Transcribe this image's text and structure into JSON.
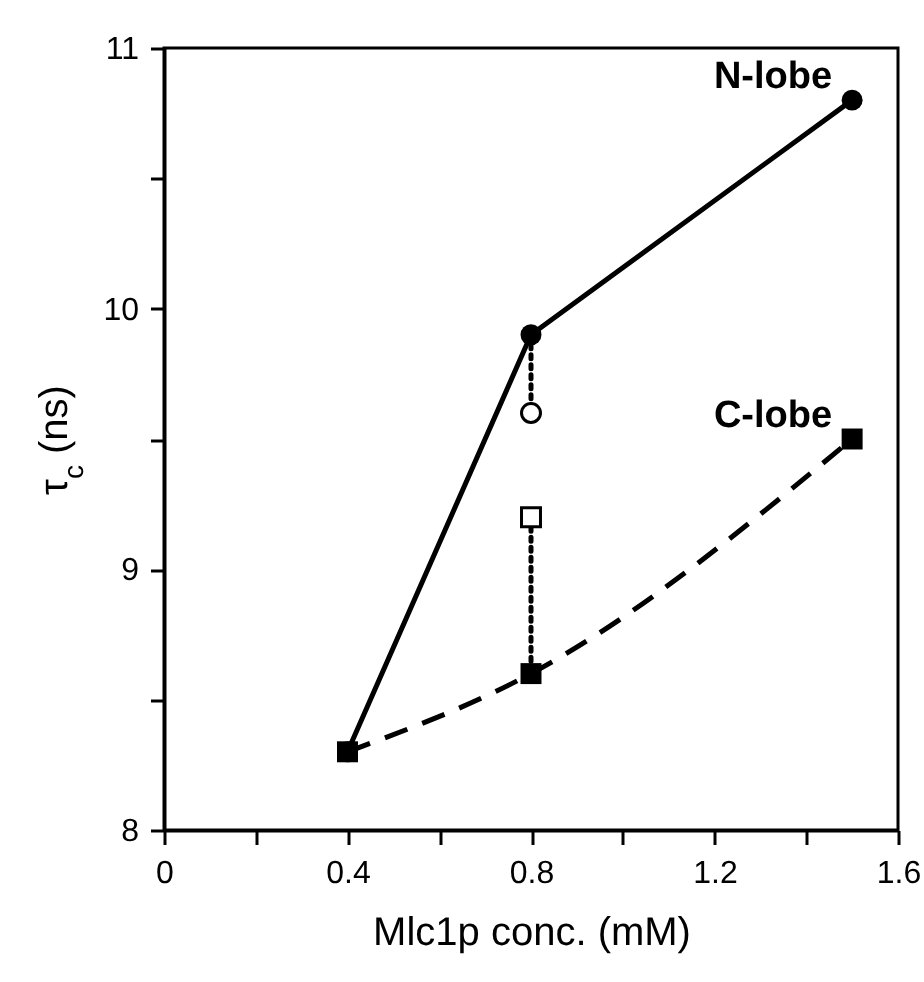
{
  "chart_data": {
    "type": "line",
    "xlabel": "Mlc1p conc. (mM)",
    "ylabel": "τ$_{c}$ (ns)",
    "xlim": [
      0,
      1.6
    ],
    "ylim": [
      8,
      11
    ],
    "xticks": [
      0,
      {
        "value": 0.2,
        "label": null
      },
      0.4,
      {
        "value": 0.6,
        "label": null
      },
      0.8,
      {
        "value": 1.0,
        "label": null
      },
      1.2,
      {
        "value": 1.4,
        "label": null
      },
      1.6
    ],
    "yticks": [
      8,
      {
        "value": 8.5,
        "label": null
      },
      9,
      {
        "value": 9.5,
        "label": null
      },
      10,
      {
        "value": 10.5,
        "label": null
      },
      11
    ],
    "grid": false,
    "series": [
      {
        "name": "N-lobe",
        "color": "#000000",
        "marker": "circle",
        "line_style": "solid",
        "x": [
          0.4,
          0.8,
          1.5
        ],
        "values": [
          8.3,
          9.9,
          10.8
        ]
      },
      {
        "name": "C-lobe",
        "color": "#000000",
        "marker": "square",
        "line_style": "dashed",
        "x": [
          0.4,
          0.8,
          1.5
        ],
        "values": [
          8.3,
          8.6,
          9.5
        ]
      },
      {
        "color": "#000000",
        "marker": "none",
        "line_style": "dotted",
        "x": [
          0.8,
          0.8
        ],
        "values": [
          9.9,
          9.6
        ]
      },
      {
        "color": "#000000",
        "marker": "none",
        "line_style": "dotted",
        "x": [
          0.8,
          0.8
        ],
        "values": [
          9.2,
          8.6
        ]
      },
      {
        "type": "scatter",
        "color": "#000000",
        "marker": "circle",
        "x": [
          0.8
        ],
        "values": [
          9.6
        ]
      },
      {
        "type": "scatter",
        "color": "#000000",
        "marker": "square",
        "x": [
          0.8
        ],
        "values": [
          9.2
        ]
      }
    ]
  }
}
